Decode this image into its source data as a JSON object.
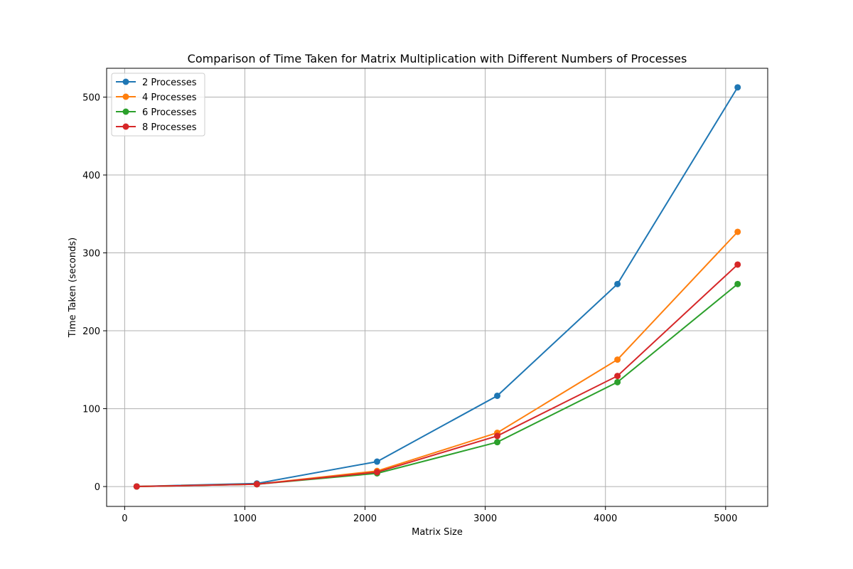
{
  "chart_data": {
    "type": "line",
    "title": "Comparison of Time Taken for Matrix Multiplication with Different Numbers of Processes",
    "xlabel": "Matrix Size",
    "ylabel": "Time Taken (seconds)",
    "x": [
      100,
      1100,
      2100,
      3100,
      4100,
      5100
    ],
    "xlim": [
      -150,
      5350
    ],
    "ylim": [
      -25.5,
      537
    ],
    "xticks": [
      0,
      1000,
      2000,
      3000,
      4000,
      5000
    ],
    "yticks": [
      0,
      100,
      200,
      300,
      400,
      500
    ],
    "grid": true,
    "legend_position": "top-left",
    "series": [
      {
        "name": "2 Processes",
        "color": "#1f77b4",
        "values": [
          0.1,
          4.0,
          32.0,
          116.5,
          260.0,
          512.5
        ]
      },
      {
        "name": "4 Processes",
        "color": "#ff7f0e",
        "values": [
          0.1,
          3.0,
          20.0,
          69.0,
          163.0,
          327.0
        ]
      },
      {
        "name": "6 Processes",
        "color": "#2ca02c",
        "values": [
          0.1,
          3.0,
          17.0,
          57.0,
          134.0,
          260.0
        ]
      },
      {
        "name": "8 Processes",
        "color": "#d62728",
        "values": [
          0.1,
          3.0,
          18.5,
          65.0,
          142.0,
          285.0
        ]
      }
    ]
  }
}
